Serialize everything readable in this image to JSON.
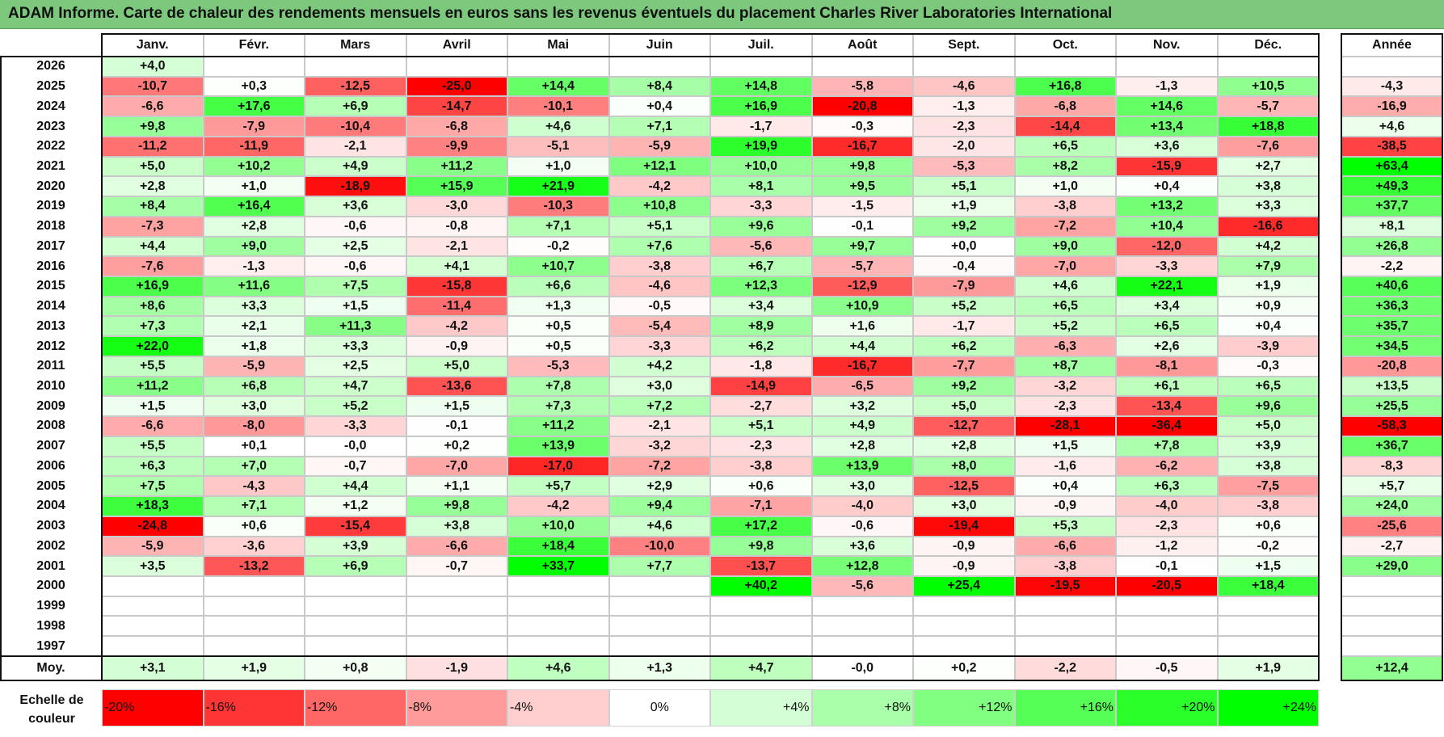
{
  "title": "ADAM Informe. Carte de chaleur des rendements mensuels en euros sans les revenus éventuels du placement Charles River Laboratories International",
  "chart_data": {
    "type": "heatmap",
    "columns": [
      "Janv.",
      "Févr.",
      "Mars",
      "Avril",
      "Mai",
      "Juin",
      "Juil.",
      "Août",
      "Sept.",
      "Oct.",
      "Nov.",
      "Déc."
    ],
    "year_column_label": "Année",
    "rows": [
      {
        "year": "2026",
        "values": [
          "+4,0",
          "",
          "",
          "",
          "",
          "",
          "",
          "",
          "",
          "",
          "",
          ""
        ],
        "annual": ""
      },
      {
        "year": "2025",
        "values": [
          "-10,7",
          "+0,3",
          "-12,5",
          "-25,0",
          "+14,4",
          "+8,4",
          "+14,8",
          "-5,8",
          "-4,6",
          "+16,8",
          "-1,3",
          "+10,5"
        ],
        "annual": "-4,3"
      },
      {
        "year": "2024",
        "values": [
          "-6,6",
          "+17,6",
          "+6,9",
          "-14,7",
          "-10,1",
          "+0,4",
          "+16,9",
          "-20,8",
          "-1,3",
          "-6,8",
          "+14,6",
          "-5,7"
        ],
        "annual": "-16,9"
      },
      {
        "year": "2023",
        "values": [
          "+9,8",
          "-7,9",
          "-10,4",
          "-6,8",
          "+4,6",
          "+7,1",
          "-1,7",
          "-0,3",
          "-2,3",
          "-14,4",
          "+13,4",
          "+18,8"
        ],
        "annual": "+4,6"
      },
      {
        "year": "2022",
        "values": [
          "-11,2",
          "-11,9",
          "-2,1",
          "-9,9",
          "-5,1",
          "-5,9",
          "+19,9",
          "-16,7",
          "-2,0",
          "+6,5",
          "+3,6",
          "-7,6"
        ],
        "annual": "-38,5"
      },
      {
        "year": "2021",
        "values": [
          "+5,0",
          "+10,2",
          "+4,9",
          "+11,2",
          "+1,0",
          "+12,1",
          "+10,0",
          "+9,8",
          "-5,3",
          "+8,2",
          "-15,9",
          "+2,7"
        ],
        "annual": "+63,4"
      },
      {
        "year": "2020",
        "values": [
          "+2,8",
          "+1,0",
          "-18,9",
          "+15,9",
          "+21,9",
          "-4,2",
          "+8,1",
          "+9,5",
          "+5,1",
          "+1,0",
          "+0,4",
          "+3,8"
        ],
        "annual": "+49,3"
      },
      {
        "year": "2019",
        "values": [
          "+8,4",
          "+16,4",
          "+3,6",
          "-3,0",
          "-10,3",
          "+10,8",
          "-3,3",
          "-1,5",
          "+1,9",
          "-3,8",
          "+13,2",
          "+3,3"
        ],
        "annual": "+37,7"
      },
      {
        "year": "2018",
        "values": [
          "-7,3",
          "+2,8",
          "-0,6",
          "-0,8",
          "+7,1",
          "+5,1",
          "+9,6",
          "-0,1",
          "+9,2",
          "-7,2",
          "+10,4",
          "-16,6"
        ],
        "annual": "+8,1"
      },
      {
        "year": "2017",
        "values": [
          "+4,4",
          "+9,0",
          "+2,5",
          "-2,1",
          "-0,2",
          "+7,6",
          "-5,6",
          "+9,7",
          "+0,0",
          "+9,0",
          "-12,0",
          "+4,2"
        ],
        "annual": "+26,8"
      },
      {
        "year": "2016",
        "values": [
          "-7,6",
          "-1,3",
          "-0,6",
          "+4,1",
          "+10,7",
          "-3,8",
          "+6,7",
          "-5,7",
          "-0,4",
          "-7,0",
          "-3,3",
          "+7,9"
        ],
        "annual": "-2,2"
      },
      {
        "year": "2015",
        "values": [
          "+16,9",
          "+11,6",
          "+7,5",
          "-15,8",
          "+6,6",
          "-4,6",
          "+12,3",
          "-12,9",
          "-7,9",
          "+4,6",
          "+22,1",
          "+1,9"
        ],
        "annual": "+40,6"
      },
      {
        "year": "2014",
        "values": [
          "+8,6",
          "+3,3",
          "+1,5",
          "-11,4",
          "+1,3",
          "-0,5",
          "+3,4",
          "+10,9",
          "+5,2",
          "+6,5",
          "+3,4",
          "+0,9"
        ],
        "annual": "+36,3"
      },
      {
        "year": "2013",
        "values": [
          "+7,3",
          "+2,1",
          "+11,3",
          "-4,2",
          "+0,5",
          "-5,4",
          "+8,9",
          "+1,6",
          "-1,7",
          "+5,2",
          "+6,5",
          "+0,4"
        ],
        "annual": "+35,7"
      },
      {
        "year": "2012",
        "values": [
          "+22,0",
          "+1,8",
          "+3,3",
          "-0,9",
          "+0,5",
          "-3,3",
          "+6,2",
          "+4,4",
          "+6,2",
          "-6,3",
          "+2,6",
          "-3,9"
        ],
        "annual": "+34,5"
      },
      {
        "year": "2011",
        "values": [
          "+5,5",
          "-5,9",
          "+2,5",
          "+5,0",
          "-5,3",
          "+4,2",
          "-1,8",
          "-16,7",
          "-7,7",
          "+8,7",
          "-8,1",
          "-0,3"
        ],
        "annual": "-20,8"
      },
      {
        "year": "2010",
        "values": [
          "+11,2",
          "+6,8",
          "+4,7",
          "-13,6",
          "+7,8",
          "+3,0",
          "-14,9",
          "-6,5",
          "+9,2",
          "-3,2",
          "+6,1",
          "+6,5"
        ],
        "annual": "+13,5"
      },
      {
        "year": "2009",
        "values": [
          "+1,5",
          "+3,0",
          "+5,2",
          "+1,5",
          "+7,3",
          "+7,2",
          "-2,7",
          "+3,2",
          "+5,0",
          "-2,3",
          "-13,4",
          "+9,6"
        ],
        "annual": "+25,5"
      },
      {
        "year": "2008",
        "values": [
          "-6,6",
          "-8,0",
          "-3,3",
          "-0,1",
          "+11,2",
          "-2,1",
          "+5,1",
          "+4,9",
          "-12,7",
          "-28,1",
          "-36,4",
          "+5,0"
        ],
        "annual": "-58,3"
      },
      {
        "year": "2007",
        "values": [
          "+5,5",
          "+0,1",
          "-0,0",
          "+0,2",
          "+13,9",
          "-3,2",
          "-2,3",
          "+2,8",
          "+2,8",
          "+1,5",
          "+7,8",
          "+3,9"
        ],
        "annual": "+36,7"
      },
      {
        "year": "2006",
        "values": [
          "+6,3",
          "+7,0",
          "-0,7",
          "-7,0",
          "-17,0",
          "-7,2",
          "-3,8",
          "+13,9",
          "+8,0",
          "-1,6",
          "-6,2",
          "+3,8"
        ],
        "annual": "-8,3"
      },
      {
        "year": "2005",
        "values": [
          "+7,5",
          "-4,3",
          "+4,4",
          "+1,1",
          "+5,7",
          "+2,9",
          "+0,6",
          "+3,0",
          "-12,5",
          "+0,4",
          "+6,3",
          "-7,5"
        ],
        "annual": "+5,7"
      },
      {
        "year": "2004",
        "values": [
          "+18,3",
          "+7,1",
          "+1,2",
          "+9,8",
          "-4,2",
          "+9,4",
          "-7,1",
          "-4,0",
          "+3,0",
          "-0,9",
          "-4,0",
          "-3,8"
        ],
        "annual": "+24,0"
      },
      {
        "year": "2003",
        "values": [
          "-24,8",
          "+0,6",
          "-15,4",
          "+3,8",
          "+10,0",
          "+4,6",
          "+17,2",
          "-0,6",
          "-19,4",
          "+5,3",
          "-2,3",
          "+0,6"
        ],
        "annual": "-25,6"
      },
      {
        "year": "2002",
        "values": [
          "-5,9",
          "-3,6",
          "+3,9",
          "-6,6",
          "+18,4",
          "-10,0",
          "+9,8",
          "+3,6",
          "-0,9",
          "-6,6",
          "-1,2",
          "-0,2"
        ],
        "annual": "-2,7"
      },
      {
        "year": "2001",
        "values": [
          "+3,5",
          "-13,2",
          "+6,9",
          "-0,7",
          "+33,7",
          "+7,7",
          "-13,7",
          "+12,8",
          "-0,9",
          "-3,8",
          "-0,1",
          "+1,5"
        ],
        "annual": "+29,0"
      },
      {
        "year": "2000",
        "values": [
          "",
          "",
          "",
          "",
          "",
          "",
          "+40,2",
          "-5,6",
          "+25,4",
          "-19,5",
          "-20,5",
          "+18,4"
        ],
        "annual": ""
      },
      {
        "year": "1999",
        "values": [
          "",
          "",
          "",
          "",
          "",
          "",
          "",
          "",
          "",
          "",
          "",
          ""
        ],
        "annual": ""
      },
      {
        "year": "1998",
        "values": [
          "",
          "",
          "",
          "",
          "",
          "",
          "",
          "",
          "",
          "",
          "",
          ""
        ],
        "annual": ""
      },
      {
        "year": "1997",
        "values": [
          "",
          "",
          "",
          "",
          "",
          "",
          "",
          "",
          "",
          "",
          "",
          ""
        ],
        "annual": ""
      }
    ],
    "average": {
      "label": "Moy.",
      "values": [
        "+3,1",
        "+1,9",
        "+0,8",
        "-1,9",
        "+4,6",
        "+1,3",
        "+4,7",
        "-0,0",
        "+0,2",
        "-2,2",
        "-0,5",
        "+1,9"
      ],
      "annual": "+12,4"
    },
    "scale": {
      "label": "Echelle de couleur",
      "stops": [
        "-20%",
        "-16%",
        "-12%",
        "-8%",
        "-4%",
        "0%",
        "+4%",
        "+8%",
        "+12%",
        "+16%",
        "+20%",
        "+24%"
      ],
      "colors": [
        "#ff0000",
        "#ff3434",
        "#ff6767",
        "#ff9b9b",
        "#ffcfcf",
        "#ffffff",
        "#d4ffd4",
        "#aaffaa",
        "#80ff80",
        "#55ff55",
        "#2aff2a",
        "#00ff00"
      ]
    },
    "colors": {
      "negative_max": "#ff0000",
      "neutral": "#ffffff",
      "positive_max": "#00ff00",
      "title_bg": "#7cc87c"
    }
  }
}
